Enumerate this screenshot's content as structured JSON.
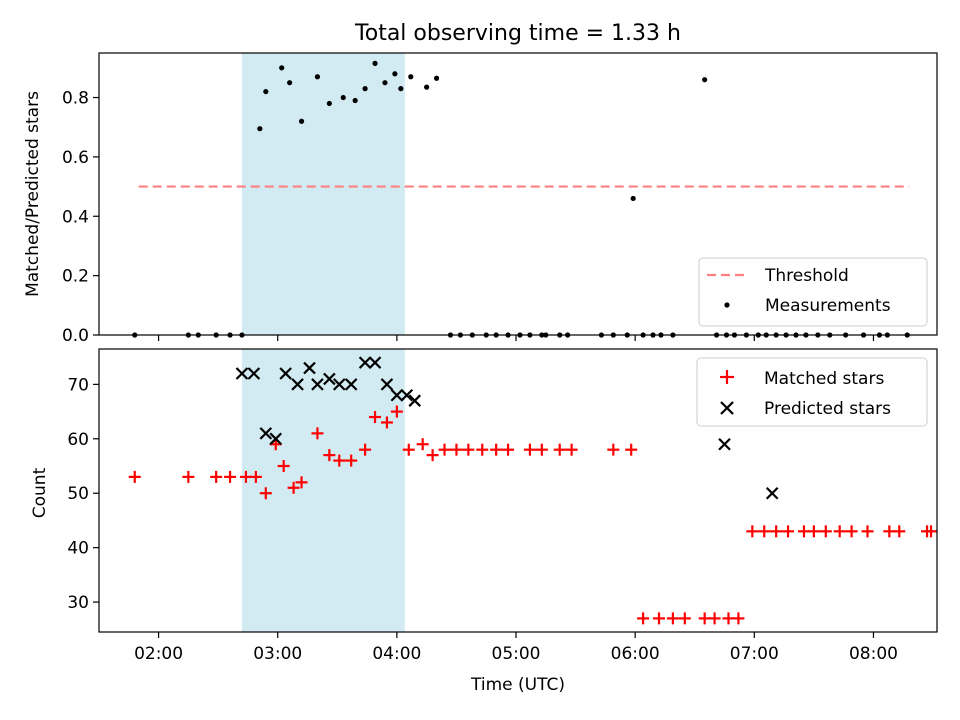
{
  "chart_data": [
    {
      "type": "scatter",
      "title": "Total observing time = 1.33 h",
      "xlabel": "",
      "ylabel": "Matched/Predicted stars",
      "ylim": [
        0,
        0.95
      ],
      "xlim": [
        "01:30",
        "08:32"
      ],
      "yticks": [
        "0.0",
        "0.2",
        "0.4",
        "0.6",
        "0.8"
      ],
      "grid": false,
      "legend_position": "lower right",
      "highlight_span": {
        "start": "02:42",
        "end": "04:04",
        "color": "#add8e6"
      },
      "threshold": {
        "name": "Threshold",
        "value": 0.5,
        "x_start": "01:50",
        "x_end": "08:18",
        "color": "#ff8080",
        "style": "dashed"
      },
      "series": [
        {
          "name": "Measurements",
          "color": "#000000",
          "marker": "dot",
          "x": [
            "01:48",
            "02:15",
            "02:20",
            "02:29",
            "02:36",
            "02:42",
            "02:51",
            "02:54",
            "03:02",
            "03:06",
            "03:12",
            "03:20",
            "03:26",
            "03:33",
            "03:39",
            "03:44",
            "03:49",
            "03:54",
            "03:59",
            "04:02",
            "04:07",
            "04:15",
            "04:20",
            "04:27",
            "04:32",
            "04:38",
            "04:45",
            "04:50",
            "04:56",
            "05:02",
            "05:07",
            "05:13",
            "05:15",
            "05:22",
            "05:26",
            "05:43",
            "05:49",
            "05:56",
            "05:59",
            "06:04",
            "06:09",
            "06:13",
            "06:19",
            "06:35",
            "06:41",
            "06:46",
            "06:50",
            "06:56",
            "07:02",
            "07:06",
            "07:11",
            "07:16",
            "07:21",
            "07:26",
            "07:32",
            "07:38",
            "07:46",
            "07:55",
            "08:03",
            "08:07",
            "08:17"
          ],
          "y": [
            0,
            0,
            0,
            0,
            0,
            0,
            0.695,
            0.82,
            0.9,
            0.85,
            0.72,
            0.87,
            0.78,
            0.8,
            0.79,
            0.83,
            0.915,
            0.85,
            0.88,
            0.83,
            0.87,
            0.835,
            0.865,
            0,
            0,
            0,
            0,
            0,
            0,
            0,
            0,
            0,
            0,
            0,
            0,
            0,
            0,
            0,
            0.46,
            0,
            0,
            0,
            0,
            0.86,
            0,
            0,
            0,
            0,
            0,
            0,
            0,
            0,
            0,
            0,
            0,
            0,
            0,
            0,
            0,
            0,
            0
          ]
        }
      ]
    },
    {
      "type": "scatter",
      "title": "",
      "xlabel": "Time (UTC)",
      "ylabel": "Count",
      "ylim": [
        24.5,
        76.5
      ],
      "xlim": [
        "01:30",
        "08:32"
      ],
      "xticks": [
        "02:00",
        "03:00",
        "04:00",
        "05:00",
        "06:00",
        "07:00",
        "08:00"
      ],
      "yticks": [
        "30",
        "40",
        "50",
        "60",
        "70"
      ],
      "grid": false,
      "legend_position": "upper right",
      "highlight_span": {
        "start": "02:42",
        "end": "04:04",
        "color": "#add8e6"
      },
      "series": [
        {
          "name": "Matched stars",
          "color": "#ff0000",
          "marker": "plus",
          "x": [
            "01:48",
            "02:15",
            "02:29",
            "02:36",
            "02:44",
            "02:49",
            "02:54",
            "02:59",
            "03:03",
            "03:08",
            "03:12",
            "03:20",
            "03:26",
            "03:31",
            "03:37",
            "03:44",
            "03:49",
            "03:55",
            "04:00",
            "04:06",
            "04:13",
            "04:18",
            "04:24",
            "04:30",
            "04:36",
            "04:43",
            "04:50",
            "04:56",
            "05:07",
            "05:13",
            "05:22",
            "05:28",
            "05:49",
            "05:58",
            "06:04",
            "06:12",
            "06:19",
            "06:25",
            "06:35",
            "06:40",
            "06:47",
            "06:52",
            "06:59",
            "07:05",
            "07:11",
            "07:17",
            "07:25",
            "07:30",
            "07:36",
            "07:43",
            "07:49",
            "07:57",
            "08:08",
            "08:13",
            "08:27",
            "08:29"
          ],
          "y": [
            53,
            53,
            53,
            53,
            53,
            53,
            50,
            59,
            55,
            51,
            52,
            61,
            57,
            56,
            56,
            58,
            64,
            63,
            65,
            58,
            59,
            57,
            58,
            58,
            58,
            58,
            58,
            58,
            58,
            58,
            58,
            58,
            58,
            58,
            27,
            27,
            27,
            27,
            27,
            27,
            27,
            27,
            43,
            43,
            43,
            43,
            43,
            43,
            43,
            43,
            43,
            43,
            43,
            43,
            43,
            43
          ]
        },
        {
          "name": "Predicted stars",
          "color": "#000000",
          "marker": "x",
          "x": [
            "02:42",
            "02:48",
            "02:54",
            "02:59",
            "03:04",
            "03:10",
            "03:16",
            "03:20",
            "03:26",
            "03:31",
            "03:37",
            "03:44",
            "03:49",
            "03:55",
            "04:00",
            "04:05",
            "04:09",
            "06:45",
            "07:09"
          ],
          "y": [
            72,
            72,
            61,
            60,
            72,
            70,
            73,
            70,
            71,
            70,
            70,
            74,
            74,
            70,
            68,
            68,
            67,
            59,
            50
          ]
        }
      ]
    }
  ]
}
